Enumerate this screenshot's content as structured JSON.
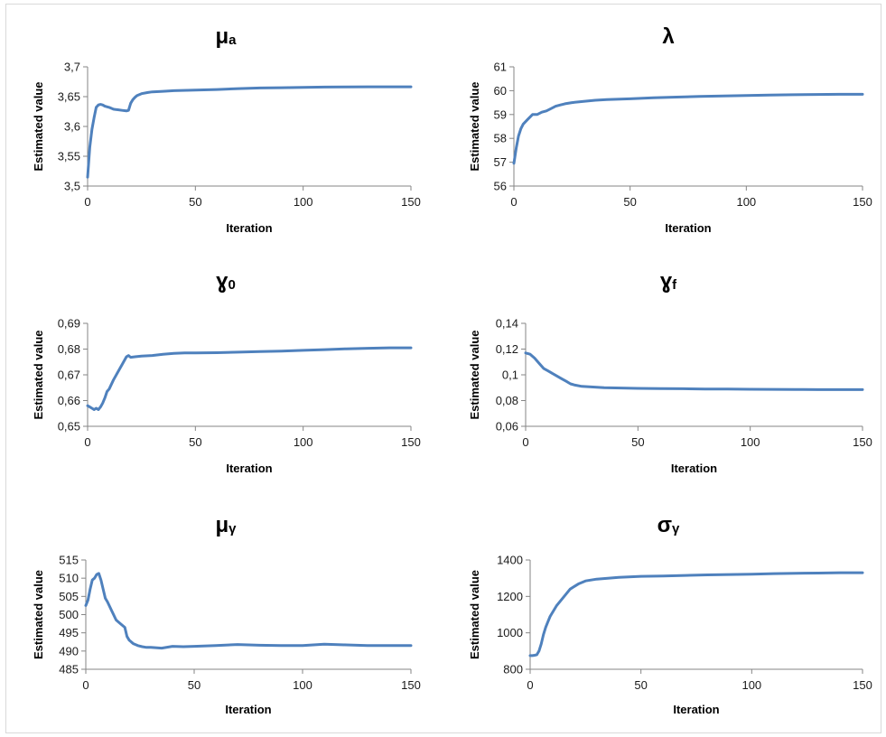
{
  "chart_data": [
    {
      "type": "line",
      "title": "μ",
      "title_sub": "a",
      "xlabel": "Iteration",
      "ylabel": "Estimated value",
      "xlim": [
        0,
        150
      ],
      "ylim": [
        3.5,
        3.7
      ],
      "xticks": [
        0,
        50,
        100,
        150
      ],
      "xtick_labels": [
        "0",
        "50",
        "100",
        "150"
      ],
      "yticks": [
        3.5,
        3.55,
        3.6,
        3.65,
        3.7
      ],
      "ytick_labels": [
        "3,5",
        "3,55",
        "3,6",
        "3,65",
        "3,7"
      ],
      "grid": false,
      "legend": "none",
      "line_color": "#4f81bd",
      "series": [
        {
          "x": [
            0,
            1,
            2,
            3,
            4,
            5,
            6,
            7,
            8,
            10,
            12,
            14,
            16,
            18,
            19,
            20,
            21,
            22,
            23,
            25,
            28,
            30,
            35,
            40,
            50,
            60,
            70,
            80,
            90,
            100,
            110,
            120,
            130,
            140,
            150
          ],
          "y": [
            3.515,
            3.565,
            3.595,
            3.615,
            3.632,
            3.636,
            3.637,
            3.636,
            3.634,
            3.632,
            3.629,
            3.628,
            3.627,
            3.626,
            3.627,
            3.639,
            3.645,
            3.649,
            3.652,
            3.655,
            3.657,
            3.658,
            3.659,
            3.66,
            3.661,
            3.662,
            3.6635,
            3.6645,
            3.665,
            3.6655,
            3.666,
            3.6663,
            3.6665,
            3.6665,
            3.6665
          ]
        }
      ]
    },
    {
      "type": "line",
      "title": "λ",
      "title_sub": "",
      "xlabel": "Iteration",
      "ylabel": "Estimated value",
      "xlim": [
        0,
        150
      ],
      "ylim": [
        56,
        61
      ],
      "xticks": [
        0,
        50,
        100,
        150
      ],
      "xtick_labels": [
        "0",
        "50",
        "100",
        "150"
      ],
      "yticks": [
        56,
        57,
        58,
        59,
        60,
        61
      ],
      "ytick_labels": [
        "56",
        "57",
        "58",
        "59",
        "60",
        "61"
      ],
      "grid": false,
      "legend": "none",
      "line_color": "#4f81bd",
      "series": [
        {
          "x": [
            0,
            1,
            2,
            3,
            4,
            5,
            6,
            8,
            10,
            12,
            14,
            16,
            18,
            20,
            22,
            25,
            30,
            35,
            40,
            50,
            60,
            70,
            80,
            90,
            100,
            110,
            120,
            130,
            140,
            150
          ],
          "y": [
            56.95,
            57.6,
            58.1,
            58.4,
            58.6,
            58.7,
            58.8,
            59.0,
            59.0,
            59.1,
            59.15,
            59.25,
            59.35,
            59.4,
            59.45,
            59.5,
            59.55,
            59.6,
            59.63,
            59.66,
            59.7,
            59.73,
            59.76,
            59.78,
            59.8,
            59.82,
            59.83,
            59.84,
            59.85,
            59.85
          ]
        }
      ]
    },
    {
      "type": "line",
      "title": "ɣ",
      "title_sub": "0",
      "xlabel": "Iteration",
      "ylabel": "Estimated value",
      "xlim": [
        0,
        150
      ],
      "ylim": [
        0.65,
        0.69
      ],
      "xticks": [
        0,
        50,
        100,
        150
      ],
      "xtick_labels": [
        "0",
        "50",
        "100",
        "150"
      ],
      "yticks": [
        0.65,
        0.66,
        0.67,
        0.68,
        0.69
      ],
      "ytick_labels": [
        "0,65",
        "0,66",
        "0,67",
        "0,68",
        "0,69"
      ],
      "grid": false,
      "legend": "none",
      "line_color": "#4f81bd",
      "series": [
        {
          "x": [
            0,
            1,
            2,
            3,
            4,
            5,
            6,
            7,
            8,
            9,
            10,
            12,
            14,
            16,
            18,
            19,
            20,
            22,
            25,
            30,
            35,
            40,
            45,
            50,
            60,
            70,
            80,
            90,
            100,
            110,
            120,
            130,
            140,
            150
          ],
          "y": [
            0.658,
            0.6575,
            0.657,
            0.6565,
            0.657,
            0.6565,
            0.6575,
            0.659,
            0.661,
            0.6635,
            0.6645,
            0.668,
            0.671,
            0.674,
            0.677,
            0.6775,
            0.6768,
            0.677,
            0.6773,
            0.6775,
            0.678,
            0.6783,
            0.6785,
            0.6785,
            0.6786,
            0.6788,
            0.679,
            0.6792,
            0.6795,
            0.6798,
            0.6801,
            0.6803,
            0.6805,
            0.6805
          ]
        }
      ]
    },
    {
      "type": "line",
      "title": "ɣ",
      "title_sub": "f",
      "xlabel": "Iteration",
      "ylabel": "Estimated value",
      "xlim": [
        0,
        150
      ],
      "ylim": [
        0.06,
        0.14
      ],
      "xticks": [
        0,
        50,
        100,
        150
      ],
      "xtick_labels": [
        "0",
        "50",
        "100",
        "150"
      ],
      "yticks": [
        0.06,
        0.08,
        0.1,
        0.12,
        0.14
      ],
      "ytick_labels": [
        "0,06",
        "0,08",
        "0,1",
        "0,12",
        "0,14"
      ],
      "grid": false,
      "legend": "none",
      "line_color": "#4f81bd",
      "series": [
        {
          "x": [
            0,
            2,
            4,
            6,
            8,
            10,
            12,
            14,
            16,
            18,
            20,
            22,
            25,
            30,
            35,
            40,
            50,
            60,
            70,
            80,
            90,
            100,
            110,
            120,
            130,
            140,
            150
          ],
          "y": [
            0.117,
            0.116,
            0.113,
            0.109,
            0.105,
            0.103,
            0.101,
            0.099,
            0.097,
            0.095,
            0.093,
            0.092,
            0.091,
            0.0905,
            0.09,
            0.0898,
            0.0895,
            0.0893,
            0.0892,
            0.089,
            0.0889,
            0.0888,
            0.0887,
            0.0886,
            0.0885,
            0.0885,
            0.0885
          ]
        }
      ]
    },
    {
      "type": "line",
      "title": "μ",
      "title_sub": "γ",
      "xlabel": "Iteration",
      "ylabel": "Estimated value",
      "xlim": [
        0,
        150
      ],
      "ylim": [
        485,
        515
      ],
      "xticks": [
        0,
        50,
        100,
        150
      ],
      "xtick_labels": [
        "0",
        "50",
        "100",
        "150"
      ],
      "yticks": [
        485,
        490,
        495,
        500,
        505,
        510,
        515
      ],
      "ytick_labels": [
        "485",
        "490",
        "495",
        "500",
        "505",
        "510",
        "515"
      ],
      "grid": false,
      "legend": "none",
      "line_color": "#4f81bd",
      "series": [
        {
          "x": [
            0,
            1,
            2,
            3,
            4,
            5,
            6,
            7,
            8,
            9,
            10,
            12,
            14,
            16,
            18,
            19,
            20,
            21,
            22,
            24,
            26,
            28,
            30,
            35,
            40,
            45,
            50,
            60,
            70,
            80,
            90,
            100,
            110,
            120,
            130,
            140,
            150
          ],
          "y": [
            502.5,
            504,
            507,
            509.5,
            510,
            511,
            511.3,
            509.5,
            507,
            504.5,
            503.5,
            501,
            498.5,
            497.5,
            496.5,
            494,
            493,
            492.5,
            492,
            491.5,
            491.2,
            491,
            491,
            490.8,
            491.3,
            491.2,
            491.3,
            491.5,
            491.8,
            491.6,
            491.5,
            491.5,
            491.9,
            491.7,
            491.5,
            491.5,
            491.5
          ]
        }
      ]
    },
    {
      "type": "line",
      "title": "σ",
      "title_sub": "γ",
      "xlabel": "Iteration",
      "ylabel": "Estimated value",
      "xlim": [
        0,
        150
      ],
      "ylim": [
        800,
        1400
      ],
      "xticks": [
        0,
        50,
        100,
        150
      ],
      "xtick_labels": [
        "0",
        "50",
        "100",
        "150"
      ],
      "yticks": [
        800,
        1000,
        1200,
        1400
      ],
      "ytick_labels": [
        "800",
        "1000",
        "1200",
        "1400"
      ],
      "grid": false,
      "legend": "none",
      "line_color": "#4f81bd",
      "series": [
        {
          "x": [
            0,
            1,
            2,
            3,
            4,
            5,
            6,
            7,
            8,
            9,
            10,
            12,
            14,
            16,
            18,
            20,
            22,
            25,
            30,
            35,
            40,
            50,
            60,
            70,
            80,
            90,
            100,
            110,
            120,
            130,
            140,
            150
          ],
          "y": [
            875,
            875,
            877,
            880,
            900,
            940,
            990,
            1030,
            1060,
            1090,
            1110,
            1150,
            1180,
            1210,
            1240,
            1255,
            1270,
            1285,
            1295,
            1300,
            1305,
            1310,
            1312,
            1315,
            1318,
            1320,
            1322,
            1325,
            1327,
            1328,
            1330,
            1330
          ]
        }
      ]
    }
  ]
}
